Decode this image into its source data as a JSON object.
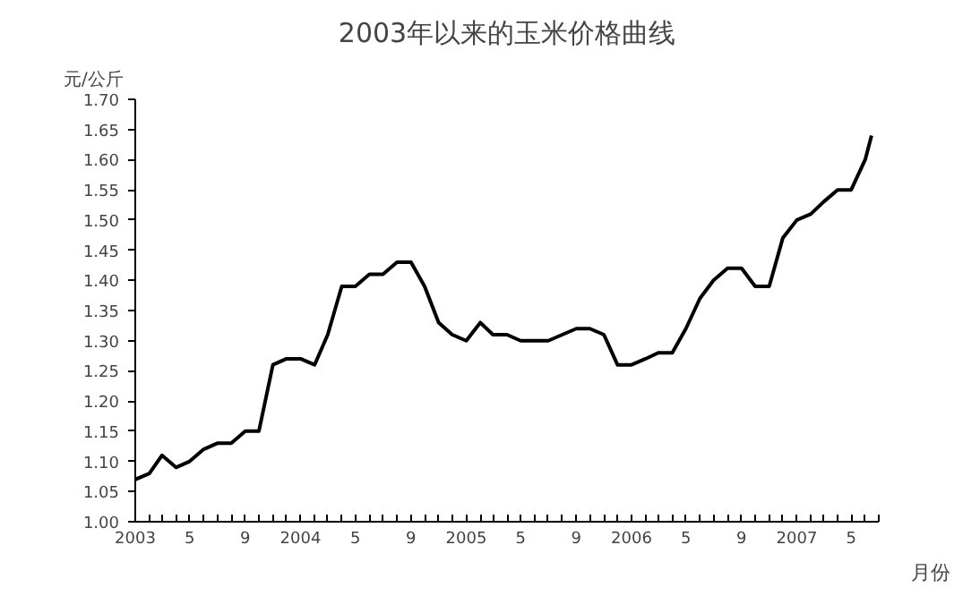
{
  "chart_data": {
    "type": "line",
    "title": "2003年以来的玉米价格曲线",
    "ylabel": "元/公斤",
    "xlabel": "月份",
    "x": [
      "2003-01",
      "2003-02",
      "2003-03",
      "2003-04",
      "2003-05",
      "2003-06",
      "2003-07",
      "2003-08",
      "2003-09",
      "2003-10",
      "2003-11",
      "2003-12",
      "2004-01",
      "2004-02",
      "2004-03",
      "2004-04",
      "2004-05",
      "2004-06",
      "2004-07",
      "2004-08",
      "2004-09",
      "2004-10",
      "2004-11",
      "2004-12",
      "2005-01",
      "2005-02",
      "2005-03",
      "2005-04",
      "2005-05",
      "2005-06",
      "2005-07",
      "2005-08",
      "2005-09",
      "2005-10",
      "2005-11",
      "2005-12",
      "2006-01",
      "2006-02",
      "2006-03",
      "2006-04",
      "2006-05",
      "2006-06",
      "2006-07",
      "2006-08",
      "2006-09",
      "2006-10",
      "2006-11",
      "2006-12",
      "2007-01",
      "2007-02",
      "2007-03",
      "2007-04",
      "2007-05",
      "2007-06",
      "2007-06-15"
    ],
    "series": [
      {
        "color": "#000000",
        "values": [
          1.07,
          1.08,
          1.11,
          1.09,
          1.1,
          1.12,
          1.13,
          1.13,
          1.15,
          1.15,
          1.26,
          1.27,
          1.27,
          1.26,
          1.31,
          1.39,
          1.39,
          1.41,
          1.41,
          1.43,
          1.43,
          1.39,
          1.33,
          1.31,
          1.3,
          1.33,
          1.31,
          1.31,
          1.3,
          1.3,
          1.3,
          1.31,
          1.32,
          1.32,
          1.31,
          1.26,
          1.26,
          1.27,
          1.28,
          1.28,
          1.32,
          1.37,
          1.4,
          1.42,
          1.42,
          1.39,
          1.39,
          1.47,
          1.5,
          1.51,
          1.53,
          1.55,
          1.55,
          1.6,
          1.64
        ]
      }
    ],
    "xlim": [
      "2003-01",
      "2007-07"
    ],
    "ylim": [
      1.0,
      1.7
    ],
    "yticks": [
      {
        "value": 1.0,
        "label": "1.00"
      },
      {
        "value": 1.05,
        "label": "1.05"
      },
      {
        "value": 1.1,
        "label": "1.10"
      },
      {
        "value": 1.15,
        "label": "1.15"
      },
      {
        "value": 1.2,
        "label": "1.20"
      },
      {
        "value": 1.25,
        "label": "1.25"
      },
      {
        "value": 1.3,
        "label": "1.30"
      },
      {
        "value": 1.35,
        "label": "1.35"
      },
      {
        "value": 1.4,
        "label": "1.40"
      },
      {
        "value": 1.45,
        "label": "1.45"
      },
      {
        "value": 1.5,
        "label": "1.50"
      },
      {
        "value": 1.55,
        "label": "1.55"
      },
      {
        "value": 1.6,
        "label": "1.60"
      },
      {
        "value": 1.65,
        "label": "1.65"
      },
      {
        "value": 1.7,
        "label": "1.70"
      }
    ],
    "xticks": [
      {
        "value": "2003-01",
        "label": "2003"
      },
      {
        "value": "2003-02",
        "label": null
      },
      {
        "value": "2003-03",
        "label": null
      },
      {
        "value": "2003-04",
        "label": null
      },
      {
        "value": "2003-05",
        "label": "5"
      },
      {
        "value": "2003-06",
        "label": null
      },
      {
        "value": "2003-07",
        "label": null
      },
      {
        "value": "2003-08",
        "label": null
      },
      {
        "value": "2003-09",
        "label": "9"
      },
      {
        "value": "2003-10",
        "label": null
      },
      {
        "value": "2003-11",
        "label": null
      },
      {
        "value": "2003-12",
        "label": null
      },
      {
        "value": "2004-01",
        "label": "2004"
      },
      {
        "value": "2004-02",
        "label": null
      },
      {
        "value": "2004-03",
        "label": null
      },
      {
        "value": "2004-04",
        "label": null
      },
      {
        "value": "2004-05",
        "label": "5"
      },
      {
        "value": "2004-06",
        "label": null
      },
      {
        "value": "2004-07",
        "label": null
      },
      {
        "value": "2004-08",
        "label": null
      },
      {
        "value": "2004-09",
        "label": "9"
      },
      {
        "value": "2004-10",
        "label": null
      },
      {
        "value": "2004-11",
        "label": null
      },
      {
        "value": "2004-12",
        "label": null
      },
      {
        "value": "2005-01",
        "label": "2005"
      },
      {
        "value": "2005-02",
        "label": null
      },
      {
        "value": "2005-03",
        "label": null
      },
      {
        "value": "2005-04",
        "label": null
      },
      {
        "value": "2005-05",
        "label": "5"
      },
      {
        "value": "2005-06",
        "label": null
      },
      {
        "value": "2005-07",
        "label": null
      },
      {
        "value": "2005-08",
        "label": null
      },
      {
        "value": "2005-09",
        "label": "9"
      },
      {
        "value": "2005-10",
        "label": null
      },
      {
        "value": "2005-11",
        "label": null
      },
      {
        "value": "2005-12",
        "label": null
      },
      {
        "value": "2006-01",
        "label": "2006"
      },
      {
        "value": "2006-02",
        "label": null
      },
      {
        "value": "2006-03",
        "label": null
      },
      {
        "value": "2006-04",
        "label": null
      },
      {
        "value": "2006-05",
        "label": "5"
      },
      {
        "value": "2006-06",
        "label": null
      },
      {
        "value": "2006-07",
        "label": null
      },
      {
        "value": "2006-08",
        "label": null
      },
      {
        "value": "2006-09",
        "label": "9"
      },
      {
        "value": "2006-10",
        "label": null
      },
      {
        "value": "2006-11",
        "label": null
      },
      {
        "value": "2006-12",
        "label": null
      },
      {
        "value": "2007-01",
        "label": "2007"
      },
      {
        "value": "2007-02",
        "label": null
      },
      {
        "value": "2007-03",
        "label": null
      },
      {
        "value": "2007-04",
        "label": null
      },
      {
        "value": "2007-05",
        "label": "5"
      },
      {
        "value": "2007-06",
        "label": null
      },
      {
        "value": "2007-07",
        "label": null
      }
    ],
    "grid": false
  }
}
